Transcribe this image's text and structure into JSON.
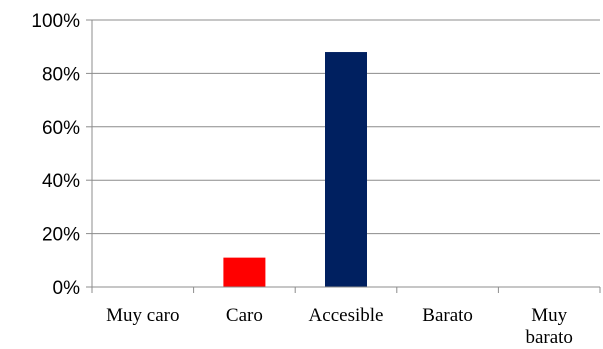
{
  "chart_data": {
    "type": "bar",
    "categories": [
      "Muy caro",
      "Caro",
      "Accesible",
      "Barato",
      "Muy barato"
    ],
    "category_lines": [
      [
        "Muy caro"
      ],
      [
        "Caro"
      ],
      [
        "Accesible"
      ],
      [
        "Barato"
      ],
      [
        "Muy",
        "barato"
      ]
    ],
    "values": [
      0,
      11,
      88,
      0,
      0
    ],
    "bar_colors": [
      "#ff0000",
      "#ff0000",
      "#002060",
      "#002060",
      "#002060"
    ],
    "yticks": [
      "0%",
      "20%",
      "40%",
      "60%",
      "80%",
      "100%"
    ],
    "ylim": [
      0,
      100
    ],
    "grid": true,
    "title": "",
    "xlabel": "",
    "ylabel": ""
  }
}
